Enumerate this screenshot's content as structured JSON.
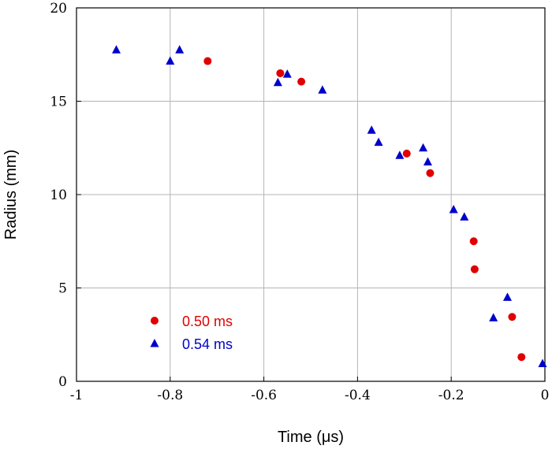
{
  "chart_data": {
    "type": "scatter",
    "title": "",
    "xlabel": "Time (μs)",
    "ylabel": "Radius (mm)",
    "xlim": [
      -1,
      0
    ],
    "ylim": [
      0,
      20
    ],
    "xticks": [
      -1,
      -0.8,
      -0.6,
      -0.4,
      -0.2,
      0
    ],
    "xtick_labels": [
      "-1",
      "-0.8",
      "-0.6",
      "-0.4",
      "-0.2",
      "0"
    ],
    "yticks": [
      0,
      5,
      10,
      15,
      20
    ],
    "ytick_labels": [
      "0",
      "5",
      "10",
      "15",
      "20"
    ],
    "grid": true,
    "legend_position": "lower-left",
    "series": [
      {
        "name": "0.50 ms",
        "marker": "circle",
        "color": "#e00000",
        "points": [
          {
            "x": -0.72,
            "y": 17.15
          },
          {
            "x": -0.565,
            "y": 16.5
          },
          {
            "x": -0.52,
            "y": 16.05
          },
          {
            "x": -0.295,
            "y": 12.2
          },
          {
            "x": -0.245,
            "y": 11.15
          },
          {
            "x": -0.152,
            "y": 7.5
          },
          {
            "x": -0.15,
            "y": 6.0
          },
          {
            "x": -0.07,
            "y": 3.45
          },
          {
            "x": -0.05,
            "y": 1.3
          }
        ]
      },
      {
        "name": "0.54 ms",
        "marker": "triangle",
        "color": "#0000cc",
        "points": [
          {
            "x": -0.915,
            "y": 17.75
          },
          {
            "x": -0.8,
            "y": 17.15
          },
          {
            "x": -0.78,
            "y": 17.75
          },
          {
            "x": -0.57,
            "y": 16.0
          },
          {
            "x": -0.55,
            "y": 16.45
          },
          {
            "x": -0.475,
            "y": 15.6
          },
          {
            "x": -0.37,
            "y": 13.45
          },
          {
            "x": -0.355,
            "y": 12.8
          },
          {
            "x": -0.31,
            "y": 12.1
          },
          {
            "x": -0.26,
            "y": 12.5
          },
          {
            "x": -0.25,
            "y": 11.75
          },
          {
            "x": -0.195,
            "y": 9.2
          },
          {
            "x": -0.172,
            "y": 8.8
          },
          {
            "x": -0.11,
            "y": 3.4
          },
          {
            "x": -0.08,
            "y": 4.5
          },
          {
            "x": -0.005,
            "y": 0.95
          }
        ]
      }
    ]
  }
}
